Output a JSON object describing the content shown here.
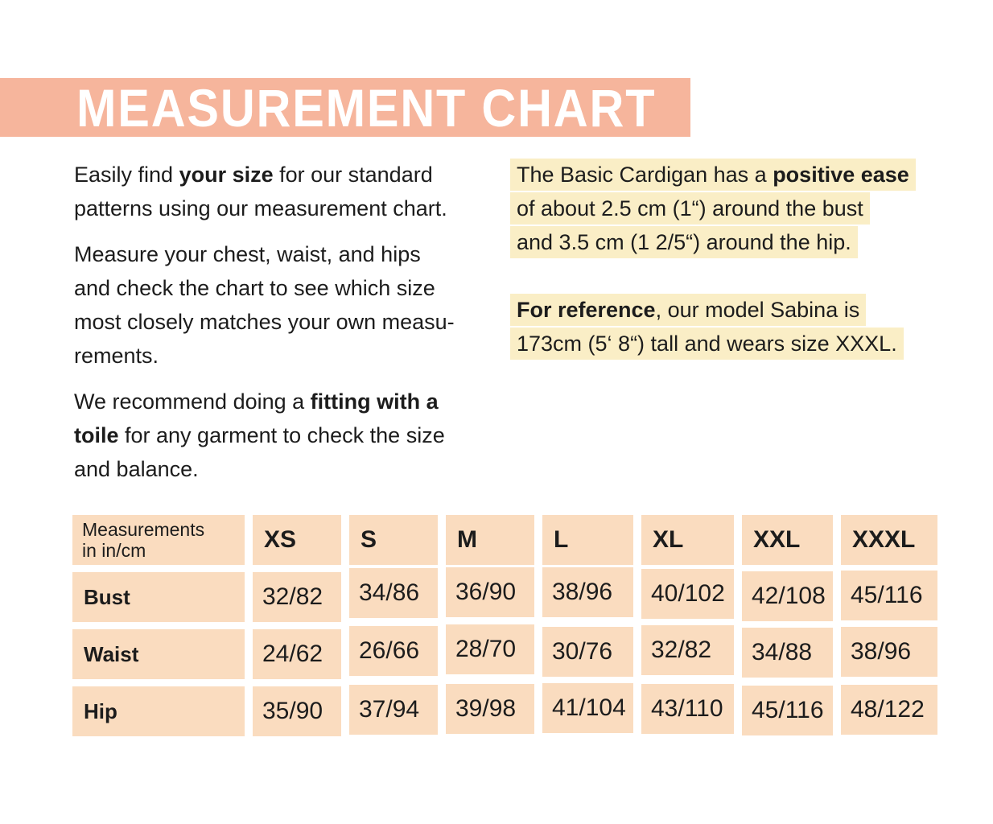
{
  "colors": {
    "banner": "#F6B59C",
    "table_cell": "#FADCBF",
    "highlight": "#FAEEC6",
    "text": "#1C1C1C",
    "title_text": "#FFFFFF",
    "background": "#FFFFFF"
  },
  "header": {
    "title": "MEASUREMENT CHART"
  },
  "intro": {
    "left_paragraphs": [
      {
        "segments": [
          {
            "t": "Easily find "
          },
          {
            "t": "your size",
            "b": true
          },
          {
            "t": " for our standard\npatterns using our measurement chart."
          }
        ]
      },
      {
        "segments": [
          {
            "t": "Measure your chest, waist, and hips\nand check the chart to see which size\nmost closely matches your own measu-\nrements."
          }
        ]
      },
      {
        "segments": [
          {
            "t": "We recommend doing a "
          },
          {
            "t": "fitting with a\ntoile",
            "b": true
          },
          {
            "t": " for any garment to check the size\nand balance."
          }
        ]
      }
    ],
    "right_paragraphs": [
      {
        "segments": [
          {
            "t": "The Basic Cardigan has a "
          },
          {
            "t": "positive ease",
            "b": true
          },
          {
            "t": "\nof about 2.5 cm (1“) around the bust\nand 3.5 cm (1 2/5“) around the hip."
          }
        ]
      },
      {
        "segments": [
          {
            "t": "For reference",
            "b": true
          },
          {
            "t": ", our model Sabina is\n173cm (5‘ 8“) tall and wears size XXXL."
          }
        ]
      }
    ]
  },
  "table": {
    "corner_label": "Measurements\nin in/cm",
    "sizes": [
      "XS",
      "S",
      "M",
      "L",
      "XL",
      "XXL",
      "XXXL"
    ],
    "rows": [
      {
        "label": "Bust",
        "values": [
          "32/82",
          "34/86",
          "36/90",
          "38/96",
          "40/102",
          "42/108",
          "45/116"
        ]
      },
      {
        "label": "Waist",
        "values": [
          "24/62",
          "26/66",
          "28/70",
          "30/76",
          "32/82",
          "34/88",
          "38/96"
        ]
      },
      {
        "label": "Hip",
        "values": [
          "35/90",
          "37/94",
          "39/98",
          "41/104",
          "43/110",
          "45/116",
          "48/122"
        ]
      }
    ]
  }
}
